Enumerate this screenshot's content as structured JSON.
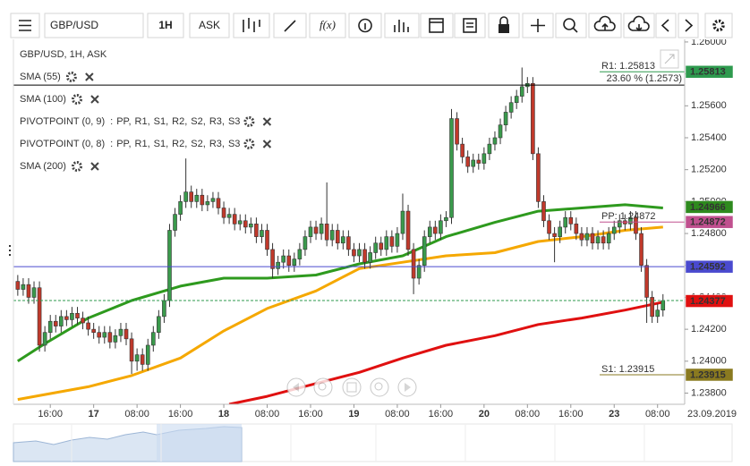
{
  "toolbar": {
    "symbol": "GBP/USD",
    "timeframe": "1H",
    "side": "ASK",
    "function_button": "f(x)"
  },
  "chart_data": {
    "type": "candlestick",
    "title": "GBP/USD, 1H, ASK",
    "up_color": "#3a9a4c",
    "down_color": "#c0392b",
    "open": [
      1.245,
      1.2445,
      1.2448,
      1.244,
      1.2446,
      1.241,
      1.2418,
      1.2425,
      1.2422,
      1.2428,
      1.2426,
      1.243,
      1.2427,
      1.2424,
      1.242,
      1.2418,
      1.2415,
      1.2418,
      1.2412,
      1.2416,
      1.242,
      1.2414,
      1.24,
      1.2404,
      1.2398,
      1.241,
      1.2418,
      1.2428,
      1.2438,
      1.2482,
      1.2492,
      1.25,
      1.2506,
      1.25,
      1.2504,
      1.2498,
      1.25,
      1.2502,
      1.2496,
      1.249,
      1.2492,
      1.2486,
      1.2488,
      1.2484,
      1.2486,
      1.2478,
      1.2482,
      1.247,
      1.2458,
      1.2462,
      1.2466,
      1.246,
      1.2464,
      1.247,
      1.2478,
      1.2484,
      1.248,
      1.2486,
      1.2476,
      1.2482,
      1.2474,
      1.2478,
      1.247,
      1.2466,
      1.247,
      1.2462,
      1.2468,
      1.2474,
      1.247,
      1.2478,
      1.2472,
      1.248,
      1.2494,
      1.247,
      1.2452,
      1.246,
      1.2478,
      1.2484,
      1.248,
      1.2488,
      1.249,
      1.2552,
      1.2536,
      1.2528,
      1.2522,
      1.2526,
      1.2524,
      1.253,
      1.2536,
      1.254,
      1.2548,
      1.2556,
      1.2562,
      1.2566,
      1.2572,
      1.2574,
      1.253,
      1.25,
      1.2488,
      1.248,
      1.2478,
      1.2484,
      1.249,
      1.2486,
      1.248,
      1.2476,
      1.248,
      1.2474,
      1.2478,
      1.2474,
      1.248,
      1.2484,
      1.2488,
      1.2486,
      1.249,
      1.248,
      1.246,
      1.244,
      1.2428,
      1.2432
    ],
    "high": [
      1.2454,
      1.2452,
      1.2452,
      1.245,
      1.245,
      1.2422,
      1.2429,
      1.2429,
      1.2432,
      1.2432,
      1.2434,
      1.2434,
      1.2431,
      1.2428,
      1.2424,
      1.2422,
      1.2422,
      1.2422,
      1.242,
      1.2424,
      1.2424,
      1.2418,
      1.2408,
      1.2408,
      1.2414,
      1.2422,
      1.2432,
      1.2442,
      1.2486,
      1.2496,
      1.2504,
      1.2527,
      1.251,
      1.2508,
      1.2508,
      1.2504,
      1.2506,
      1.2506,
      1.25,
      1.2496,
      1.2496,
      1.2492,
      1.2492,
      1.249,
      1.249,
      1.2486,
      1.2486,
      1.2474,
      1.2466,
      1.247,
      1.247,
      1.2468,
      1.2474,
      1.2482,
      1.2488,
      1.2488,
      1.249,
      1.2512,
      1.2486,
      1.2486,
      1.2482,
      1.2482,
      1.2474,
      1.2474,
      1.2474,
      1.2472,
      1.2478,
      1.2478,
      1.2482,
      1.2482,
      1.2484,
      1.2505,
      1.2498,
      1.2474,
      1.2464,
      1.2482,
      1.2488,
      1.2488,
      1.2492,
      1.2494,
      1.2558,
      1.2556,
      1.254,
      1.2532,
      1.253,
      1.253,
      1.2534,
      1.254,
      1.2544,
      1.2552,
      1.256,
      1.2566,
      1.257,
      1.2584,
      1.2578,
      1.2578,
      1.2534,
      1.2504,
      1.2492,
      1.2484,
      1.2488,
      1.2494,
      1.2494,
      1.249,
      1.2484,
      1.2484,
      1.2484,
      1.2482,
      1.2482,
      1.2484,
      1.2488,
      1.2492,
      1.2492,
      1.2494,
      1.2494,
      1.2484,
      1.2464,
      1.2444,
      1.2436,
      1.2442
    ],
    "low": [
      1.2441,
      1.2441,
      1.2436,
      1.2436,
      1.2406,
      1.2406,
      1.2414,
      1.2418,
      1.2418,
      1.2422,
      1.2422,
      1.2423,
      1.242,
      1.2416,
      1.2414,
      1.2411,
      1.2411,
      1.2408,
      1.2408,
      1.2412,
      1.241,
      1.2392,
      1.2394,
      1.2394,
      1.2394,
      1.2406,
      1.2414,
      1.2424,
      1.2434,
      1.2478,
      1.2488,
      1.2496,
      1.2496,
      1.2496,
      1.2494,
      1.2494,
      1.2496,
      1.2492,
      1.2486,
      1.2486,
      1.2482,
      1.2482,
      1.248,
      1.248,
      1.2474,
      1.2474,
      1.2466,
      1.2452,
      1.2454,
      1.2458,
      1.2456,
      1.2456,
      1.246,
      1.2466,
      1.2474,
      1.2476,
      1.2476,
      1.2472,
      1.2472,
      1.247,
      1.247,
      1.2466,
      1.2462,
      1.2462,
      1.2458,
      1.2458,
      1.2464,
      1.2466,
      1.2466,
      1.2468,
      1.2468,
      1.2476,
      1.2466,
      1.2442,
      1.2448,
      1.2456,
      1.2474,
      1.2476,
      1.2476,
      1.2484,
      1.2486,
      1.2532,
      1.2524,
      1.2518,
      1.2518,
      1.252,
      1.252,
      1.2526,
      1.2532,
      1.2536,
      1.2544,
      1.2552,
      1.2558,
      1.2562,
      1.2568,
      1.2526,
      1.2496,
      1.2484,
      1.2476,
      1.2462,
      1.2474,
      1.248,
      1.2482,
      1.2476,
      1.2472,
      1.2472,
      1.247,
      1.247,
      1.247,
      1.247,
      1.2476,
      1.248,
      1.2482,
      1.2482,
      1.2476,
      1.2456,
      1.2424,
      1.2424,
      1.2424,
      1.2428
    ],
    "close": [
      1.2445,
      1.2448,
      1.244,
      1.2446,
      1.241,
      1.2418,
      1.2425,
      1.2422,
      1.2428,
      1.2426,
      1.243,
      1.2427,
      1.2424,
      1.242,
      1.2418,
      1.2415,
      1.2418,
      1.2412,
      1.2416,
      1.242,
      1.2414,
      1.24,
      1.2404,
      1.2398,
      1.241,
      1.2418,
      1.2428,
      1.2438,
      1.2482,
      1.2492,
      1.25,
      1.2506,
      1.25,
      1.2504,
      1.2498,
      1.25,
      1.2502,
      1.2496,
      1.249,
      1.2492,
      1.2486,
      1.2488,
      1.2484,
      1.2486,
      1.2478,
      1.2482,
      1.247,
      1.2458,
      1.2462,
      1.2466,
      1.246,
      1.2464,
      1.247,
      1.2478,
      1.2484,
      1.248,
      1.2486,
      1.2476,
      1.2482,
      1.2474,
      1.2478,
      1.247,
      1.2466,
      1.247,
      1.2462,
      1.2468,
      1.2474,
      1.247,
      1.2478,
      1.2472,
      1.248,
      1.2494,
      1.247,
      1.2452,
      1.246,
      1.2478,
      1.2484,
      1.248,
      1.2488,
      1.249,
      1.2552,
      1.2536,
      1.2528,
      1.2522,
      1.2526,
      1.2524,
      1.253,
      1.2536,
      1.254,
      1.2548,
      1.2556,
      1.2562,
      1.2566,
      1.2572,
      1.2574,
      1.253,
      1.25,
      1.2488,
      1.248,
      1.2478,
      1.2484,
      1.249,
      1.2486,
      1.248,
      1.2476,
      1.248,
      1.2474,
      1.2478,
      1.2474,
      1.248,
      1.2484,
      1.2488,
      1.2486,
      1.249,
      1.248,
      1.246,
      1.244,
      1.2428,
      1.2432,
      1.2438
    ],
    "xlim": [
      -0.8,
      123
    ],
    "xticks": [
      {
        "value": 6,
        "label": "16:00"
      },
      {
        "value": 14,
        "label": "17"
      },
      {
        "value": 22,
        "label": "08:00"
      },
      {
        "value": 30,
        "label": "16:00"
      },
      {
        "value": 38,
        "label": "18"
      },
      {
        "value": 46,
        "label": "08:00"
      },
      {
        "value": 54,
        "label": "16:00"
      },
      {
        "value": 62,
        "label": "19"
      },
      {
        "value": 70,
        "label": "08:00"
      },
      {
        "value": 78,
        "label": "16:00"
      },
      {
        "value": 86,
        "label": "20"
      },
      {
        "value": 94,
        "label": "08:00"
      },
      {
        "value": 102,
        "label": "16:00"
      },
      {
        "value": 110,
        "label": "23"
      },
      {
        "value": 118,
        "label": "08:00"
      }
    ],
    "x_axis_date": "23.09.2019",
    "ylim": [
      1.2373,
      1.2605
    ],
    "yticks": [
      {
        "value": 1.238,
        "label": "1.23800"
      },
      {
        "value": 1.24,
        "label": "1.24000"
      },
      {
        "value": 1.242,
        "label": "1.24200"
      },
      {
        "value": 1.244,
        "label": "1.24400"
      },
      {
        "value": 1.246,
        "label": "1.24600"
      },
      {
        "value": 1.248,
        "label": "1.24800"
      },
      {
        "value": 1.25,
        "label": "1.25000"
      },
      {
        "value": 1.252,
        "label": "1.25200"
      },
      {
        "value": 1.254,
        "label": "1.25400"
      },
      {
        "value": 1.256,
        "label": "1.25600"
      },
      {
        "value": 1.258,
        "label": "1.25800"
      },
      {
        "value": 1.26,
        "label": "1.26000"
      }
    ],
    "grid": false,
    "indicators": [
      {
        "kind": "sma",
        "name": "SMA (55)",
        "color": "#2e9a1e",
        "x": [
          0,
          5,
          13,
          21,
          30,
          38,
          46,
          55,
          63,
          71,
          79,
          88,
          96,
          104,
          112,
          119
        ],
        "values": [
          1.24,
          1.2411,
          1.2427,
          1.2438,
          1.2447,
          1.2452,
          1.2452,
          1.2454,
          1.2461,
          1.2466,
          1.2478,
          1.2487,
          1.2494,
          1.2496,
          1.2498,
          1.2496
        ]
      },
      {
        "kind": "sma",
        "name": "SMA (100)",
        "color": "#f5a800",
        "x": [
          0,
          13,
          21,
          30,
          38,
          46,
          55,
          63,
          71,
          79,
          88,
          96,
          104,
          112,
          119
        ],
        "values": [
          1.2376,
          1.2384,
          1.2391,
          1.2402,
          1.2419,
          1.2433,
          1.2444,
          1.2458,
          1.2462,
          1.2466,
          1.2468,
          1.2475,
          1.2478,
          1.2482,
          1.2484
        ]
      },
      {
        "kind": "pivot",
        "name": "PIVOTPOINT (0, 9)",
        "prefix": ":",
        "levels": [
          {
            "label": "PP,",
            "color": "#d040c0"
          },
          {
            "label": "R1,",
            "color": "#2e9a4e"
          },
          {
            "label": "S1,",
            "color": "#7a3fbf"
          },
          {
            "label": "R2,",
            "color": "#a040c0"
          },
          {
            "label": "S2,",
            "color": "#8a40c0"
          },
          {
            "label": "R3,",
            "color": "#7a3fbf"
          },
          {
            "label": "S3",
            "color": "#2a8a8a"
          }
        ]
      },
      {
        "kind": "pivot",
        "name": "PIVOTPOINT (0, 8)",
        "prefix": ":",
        "levels": [
          {
            "label": "PP,",
            "color": "#d040c0"
          },
          {
            "label": "R1,",
            "color": "#2e9a4e"
          },
          {
            "label": "S1,",
            "color": "#8a7a20"
          },
          {
            "label": "R2,",
            "color": "#a040c0"
          },
          {
            "label": "S2,",
            "color": "#8a40c0"
          },
          {
            "label": "R3,",
            "color": "#9a5a20"
          },
          {
            "label": "S3",
            "color": "#c030b0"
          }
        ]
      },
      {
        "kind": "sma",
        "name": "SMA (200)",
        "color": "#e01010",
        "x": [
          39,
          46,
          55,
          63,
          71,
          79,
          88,
          96,
          104,
          112,
          119
        ],
        "values": [
          1.2373,
          1.2378,
          1.2386,
          1.2393,
          1.2402,
          1.241,
          1.2416,
          1.2423,
          1.2427,
          1.2432,
          1.2437
        ]
      }
    ],
    "hlines": [
      {
        "value": 1.2573,
        "label": "23.60 % (1.2573)",
        "color": "#000000",
        "span": "full"
      },
      {
        "value": 1.24592,
        "color": "#4a4acf",
        "span": "full"
      },
      {
        "value": 1.2438,
        "color": "#2e9a4e",
        "span": "full",
        "dashed": true
      },
      {
        "value": 1.25813,
        "label": "R1: 1.25813",
        "color": "#2e9a4e",
        "span": "partial"
      },
      {
        "value": 1.24872,
        "label": "PP: 1.24872",
        "color": "#c0508f",
        "span": "partial"
      },
      {
        "value": 1.23915,
        "label": "S1: 1.23915",
        "color": "#8a7a20",
        "span": "partial"
      }
    ],
    "price_tags": [
      {
        "value": 1.25813,
        "color": "#2e9a4e"
      },
      {
        "value": 1.24966,
        "color": "#2e8a1e"
      },
      {
        "value": 1.24872,
        "color": "#c0508f"
      },
      {
        "value": 1.24592,
        "color": "#4a4acf"
      },
      {
        "value": 1.24377,
        "color": "#e01010"
      },
      {
        "value": 1.23915,
        "color": "#8a7a20"
      }
    ]
  }
}
